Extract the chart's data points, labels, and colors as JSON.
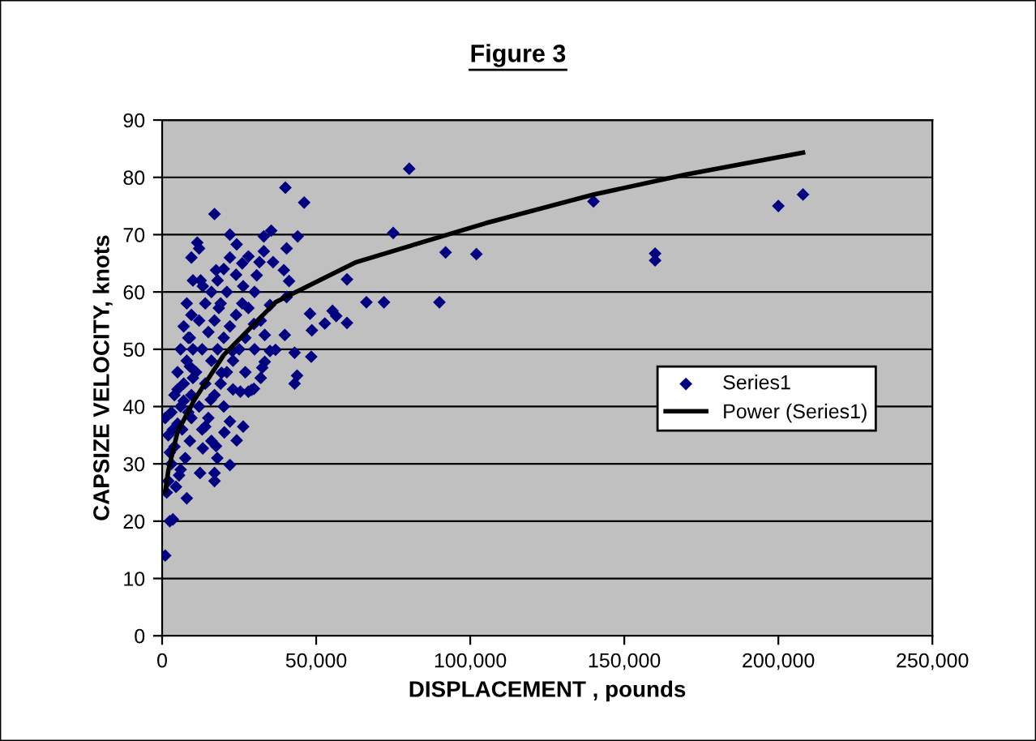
{
  "chart_data": {
    "type": "scatter",
    "title": "Figure 3",
    "xlabel": "DISPLACEMENT , pounds",
    "ylabel": "CAPSIZE VELOCITY, knots",
    "xlim": [
      0,
      250000
    ],
    "ylim": [
      0,
      90
    ],
    "xticks": [
      0,
      {
        "value": 50000,
        "label": "50,000"
      },
      {
        "value": 100000,
        "label": "100,000"
      },
      {
        "value": 150000,
        "label": "150,000"
      },
      {
        "value": 200000,
        "label": "200,000"
      },
      {
        "value": 250000,
        "label": "250,000"
      }
    ],
    "yticks": [
      0,
      10,
      20,
      30,
      40,
      50,
      60,
      70,
      80,
      90
    ],
    "grid": "y",
    "legend": "right",
    "series": [
      {
        "name": "Series1",
        "marker": "diamond",
        "color": "#000080",
        "x": [
          140000,
          160000,
          160000,
          200000,
          208000,
          80200,
          40000,
          46100,
          17000,
          35400,
          33000,
          44000,
          75000,
          92000,
          102000,
          60000,
          66300,
          72000,
          90000,
          48000,
          52800,
          55300,
          56500,
          60000,
          39800,
          48600,
          43000,
          48400,
          43800,
          43000,
          36800,
          33300,
          32000,
          29000,
          25400,
          26300,
          22000,
          24200,
          22000,
          17900,
          17000,
          17000,
          12300,
          35000,
          40400,
          41200,
          39500,
          40400,
          36000,
          31600,
          28000,
          24200,
          33000,
          30700,
          26300,
          21000,
          17500,
          13200,
          12000,
          11400,
          18400,
          28000,
          29800,
          33300,
          35000,
          32500,
          28000,
          29800,
          22800,
          19300,
          15800,
          14000,
          17500,
          13200,
          20200,
          1000,
          2500,
          3500,
          1500,
          2000,
          3000,
          4000,
          2000,
          5000,
          1000,
          3000,
          6000,
          4000,
          7000,
          5000,
          8000,
          6000,
          9000,
          7000,
          9500,
          8000,
          5500,
          7500,
          9000,
          6500,
          8500,
          9500,
          4500,
          2500,
          10000,
          8000,
          6000,
          9000,
          10000,
          7000,
          3500,
          9500,
          5000,
          8500,
          10000,
          9500,
          12000,
          14000,
          16000,
          18000,
          20000,
          22000,
          24000,
          26000,
          13000,
          15000,
          17000,
          19000,
          21000,
          23000,
          25000,
          27000,
          12000,
          14000,
          16000,
          18000,
          20000,
          22000,
          24000,
          15000,
          17000,
          19000,
          11000,
          13000,
          16000,
          20000,
          23000,
          27000,
          30000,
          32000,
          30000,
          12500,
          26000,
          22000
        ],
        "values": [
          75.8,
          66.7,
          65.5,
          75,
          77,
          81.5,
          78.2,
          75.6,
          73.6,
          70.7,
          69.7,
          69.7,
          70.3,
          66.9,
          66.6,
          62.2,
          58.2,
          58.2,
          58.2,
          56.2,
          54.5,
          56.7,
          55.8,
          54.6,
          52.5,
          53.3,
          49.4,
          48.7,
          45.4,
          44,
          49.9,
          47.8,
          45,
          42.9,
          42.6,
          36.5,
          37.4,
          34.1,
          29.8,
          31,
          28.4,
          27,
          28.4,
          57.7,
          59.1,
          61.9,
          63.8,
          67.6,
          65.2,
          65.2,
          66.2,
          68.3,
          67.1,
          62.9,
          61,
          60,
          63.8,
          61,
          67.6,
          68.6,
          57.2,
          57.2,
          54.4,
          52.5,
          49.7,
          46.8,
          42.6,
          43.1,
          49.7,
          45.9,
          41.2,
          36.5,
          33.1,
          32.7,
          35.5,
          14,
          20,
          20.3,
          25,
          27,
          30,
          33,
          35,
          37,
          38,
          39,
          40,
          42,
          44,
          46,
          48,
          50,
          52,
          54,
          56,
          58,
          28,
          31,
          34,
          36,
          39,
          42,
          26,
          32,
          45,
          24,
          29,
          47,
          50,
          41,
          36,
          38,
          43,
          52,
          62,
          66,
          40,
          44,
          48,
          50,
          52,
          54,
          56,
          58,
          50,
          53,
          55,
          58,
          46,
          48,
          50,
          52,
          55,
          58,
          60,
          62,
          64,
          66,
          63,
          38,
          42,
          44,
          46,
          36,
          34,
          40,
          43,
          46,
          50,
          55,
          60,
          62,
          65,
          70
        ]
      },
      {
        "name": "Power (Series1)",
        "type": "line",
        "marker": "none",
        "line_style": "solid",
        "color": "#000000",
        "x": [
          1000,
          2000,
          5000,
          10500,
          20000,
          36800,
          63000,
          105000,
          140000,
          170000,
          208000
        ],
        "values": [
          25,
          28.8,
          35.6,
          41.2,
          49,
          58.2,
          65.2,
          72,
          77,
          80.5,
          84.3
        ]
      }
    ]
  }
}
